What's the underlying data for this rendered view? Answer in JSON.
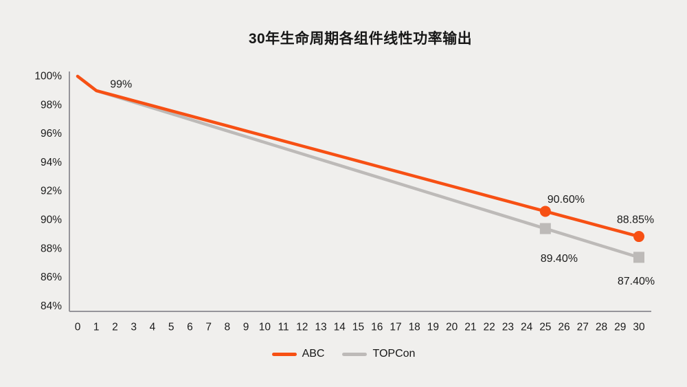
{
  "page": {
    "background_color": "#f0efed",
    "text_color": "#1b1b1b",
    "axis_color": "#96959a"
  },
  "chart_data": {
    "type": "line",
    "title": "30年生命周期各组件线性功率输出",
    "xlabel": "",
    "ylabel": "",
    "x": [
      0,
      1,
      2,
      3,
      4,
      5,
      6,
      7,
      8,
      9,
      10,
      11,
      12,
      13,
      14,
      15,
      16,
      17,
      18,
      19,
      20,
      21,
      22,
      23,
      24,
      25,
      26,
      27,
      28,
      29,
      30
    ],
    "xlim": [
      0,
      30
    ],
    "ylim": [
      84,
      100
    ],
    "y_ticks": [
      100,
      98,
      96,
      94,
      92,
      90,
      88,
      86,
      84
    ],
    "y_tick_suffix": "%",
    "grid": false,
    "legend_position": "bottom",
    "series": [
      {
        "name": "ABC",
        "color": "#f75014",
        "line_width": 4.5,
        "marker": "circle",
        "marker_size": 16,
        "marker_years": [
          25,
          30
        ],
        "values": [
          100,
          99,
          98.65,
          98.3,
          97.95,
          97.6,
          97.25,
          96.9,
          96.55,
          96.2,
          95.85,
          95.5,
          95.15,
          94.8,
          94.45,
          94.1,
          93.75,
          93.4,
          93.05,
          92.7,
          92.35,
          92,
          91.65,
          91.3,
          90.95,
          90.6,
          90.25,
          89.9,
          89.55,
          89.2,
          88.85
        ],
        "point_labels": [
          {
            "year": 1,
            "text": "99%",
            "dx": 36,
            "dy": -9
          },
          {
            "year": 25,
            "text": "90.60%",
            "dx": 30,
            "dy": -17
          },
          {
            "year": 30,
            "text": "88.85%",
            "dx": -5,
            "dy": -24
          }
        ]
      },
      {
        "name": "TOPCon",
        "color": "#bdbab8",
        "line_width": 4.5,
        "marker": "square",
        "marker_size": 16,
        "marker_years": [
          25,
          30
        ],
        "values": [
          100,
          99,
          98.6,
          98.2,
          97.8,
          97.4,
          97,
          96.6,
          96.2,
          95.8,
          95.4,
          95,
          94.6,
          94.2,
          93.8,
          93.4,
          93,
          92.6,
          92.2,
          91.8,
          91.4,
          91,
          90.6,
          90.2,
          89.8,
          89.4,
          89,
          88.6,
          88.2,
          87.8,
          87.4
        ],
        "point_labels": [
          {
            "year": 25,
            "text": "89.40%",
            "dx": 20,
            "dy": 44
          },
          {
            "year": 30,
            "text": "87.40%",
            "dx": -4,
            "dy": 35
          }
        ]
      }
    ]
  },
  "legend": {
    "items": [
      {
        "label": "ABC"
      },
      {
        "label": "TOPCon"
      }
    ]
  }
}
